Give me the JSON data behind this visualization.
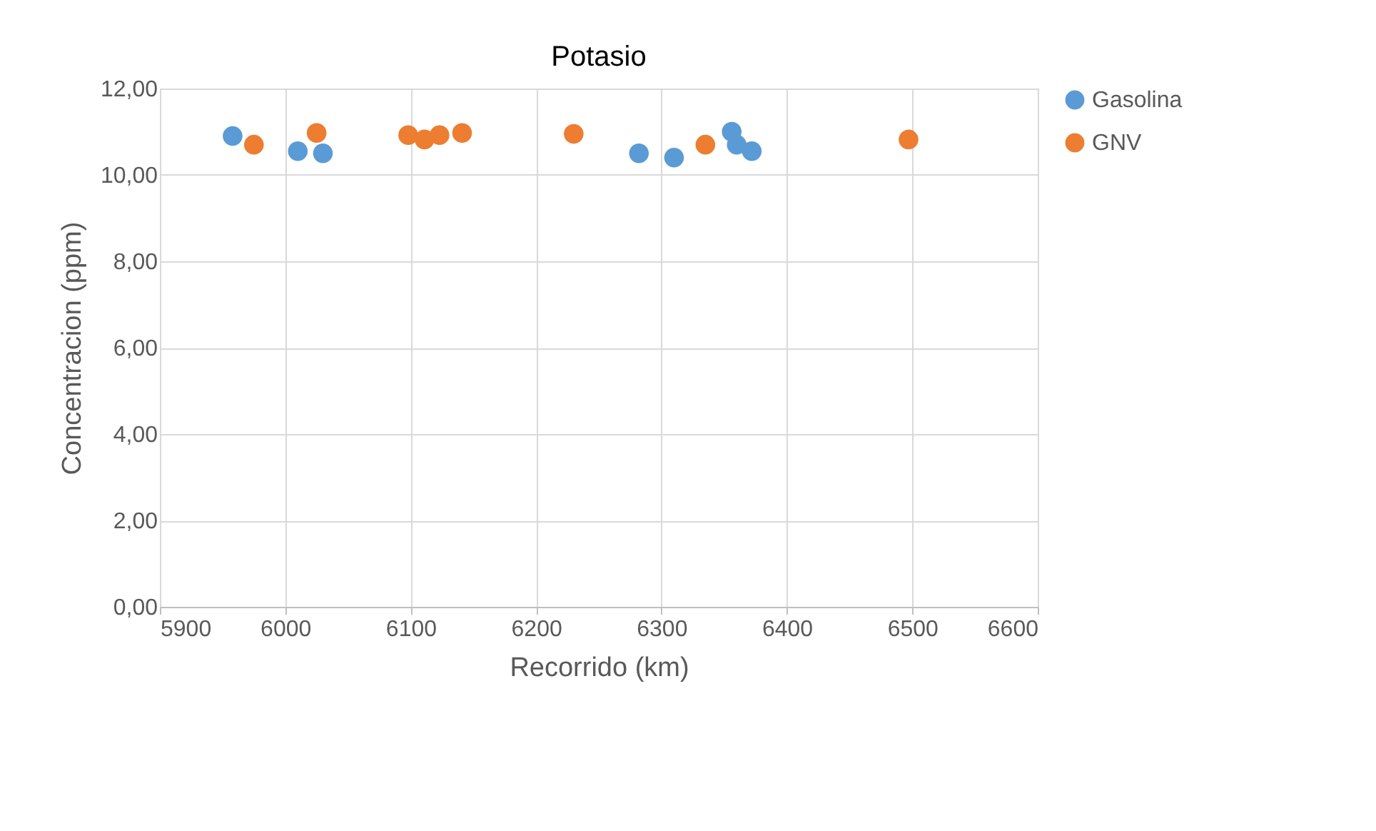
{
  "chart_data": {
    "type": "scatter",
    "title": "Potasio",
    "xlabel": "Recorrido (km)",
    "ylabel": "Concentracion  (ppm)",
    "series": [
      {
        "name": "Gasolina",
        "color": "#5b9bd5",
        "x": [
          5958,
          6010,
          6030,
          6282,
          6310,
          6356,
          6360,
          6372
        ],
        "values": [
          10.9,
          10.55,
          10.5,
          10.5,
          10.4,
          11.0,
          10.7,
          10.55
        ]
      },
      {
        "name": "GNV",
        "color": "#ed7d31",
        "x": [
          5975,
          6025,
          6098,
          6111,
          6123,
          6141,
          6230,
          6335,
          6497
        ],
        "values": [
          10.7,
          10.97,
          10.92,
          10.82,
          10.92,
          10.97,
          10.95,
          10.7,
          10.82
        ]
      }
    ],
    "xlim": [
      5900,
      6600
    ],
    "xticks": [
      5900,
      6000,
      6100,
      6200,
      6300,
      6400,
      6500,
      6600
    ],
    "ylim": [
      0,
      12
    ],
    "yticks": [
      {
        "value": 0,
        "label": "0,00"
      },
      {
        "value": 2,
        "label": "2,00"
      },
      {
        "value": 4,
        "label": "4,00"
      },
      {
        "value": 6,
        "label": "6,00"
      },
      {
        "value": 8,
        "label": "8,00"
      },
      {
        "value": 10,
        "label": "10,00"
      },
      {
        "value": 12,
        "label": "12,00"
      }
    ],
    "grid": true,
    "legend": "right",
    "marker": "circle"
  }
}
